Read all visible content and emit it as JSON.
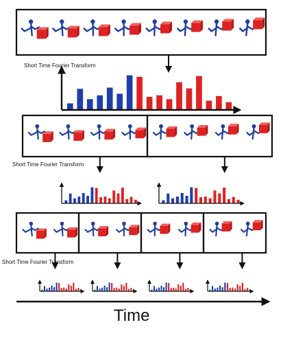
{
  "labels": {
    "stft": "Short Time Fourier Transform",
    "time": "Time"
  },
  "colors": {
    "stick_figure": "#1f3f9f",
    "box_face": "#dd2222",
    "box_top": "#f06060",
    "bar_blue": "#1f3fa8",
    "bar_red": "#dd2222",
    "frame": "#111111"
  },
  "levels": {
    "level_1": {
      "segments": 1
    },
    "level_2": {
      "segments": 2
    },
    "level_3": {
      "segments": 4
    }
  },
  "sequence": {
    "frames": 8
  },
  "spectrum": {
    "blue_bins": [
      0.17,
      0.55,
      0.28,
      0.38,
      0.58,
      0.42,
      0.9
    ],
    "red_bins": [
      0.86,
      0.34,
      0.38,
      0.28,
      0.72,
      0.56,
      0.88,
      0.24,
      0.36,
      0.2
    ]
  }
}
